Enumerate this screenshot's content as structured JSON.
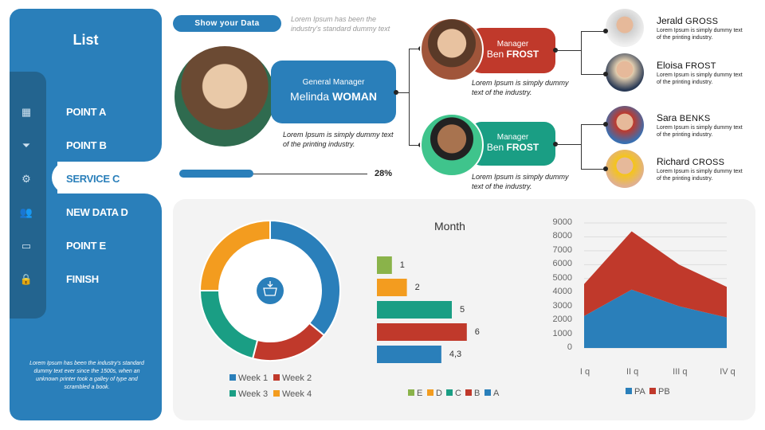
{
  "sidebar": {
    "title": "List",
    "items": [
      {
        "label": "POINT A",
        "icon": "calendar-icon"
      },
      {
        "label": "POINT B",
        "icon": "funnel-plus-icon"
      },
      {
        "label": "SERVICE C",
        "icon": "gear-icon",
        "active": true
      },
      {
        "label": "NEW DATA D",
        "icon": "users-icon"
      },
      {
        "label": "POINT E",
        "icon": "briefcase-icon"
      },
      {
        "label": "FINISH",
        "icon": "lock-icon"
      }
    ],
    "note": "Lorem Ipsum has been the industry's standard dummy text ever since the 1500s, when an unknown printer took a galley of type and scrambled  a book."
  },
  "header": {
    "button": "Show your  Data",
    "text": "Lorem Ipsum has been the industry's standard dummy text"
  },
  "general_manager": {
    "role": "General Manager",
    "first": "Melinda",
    "last": "WOMAN",
    "caption": "Lorem Ipsum is simply dummy text of the printing industry.",
    "progress_pct": 28,
    "progress_label": "28%"
  },
  "managers": [
    {
      "role": "Manager",
      "first": "Ben",
      "last": "FROST",
      "caption": "Lorem Ipsum is simply dummy text of the industry.",
      "color": "#c0392b",
      "reports": [
        {
          "first": "Jerald",
          "last": "GROSS",
          "text": "Lorem Ipsum  is simply dummy text of the printing industry."
        },
        {
          "first": "Eloisa",
          "last": "FROST",
          "text": "Lorem Ipsum  is simply dummy text of the printing industry."
        }
      ]
    },
    {
      "role": "Manager",
      "first": "Ben",
      "last": "FROST",
      "caption": "Lorem Ipsum is simply dummy text of the industry.",
      "color": "#1a9e84",
      "reports": [
        {
          "first": "Sara",
          "last": "BENKS",
          "text": "Lorem Ipsum  is simply dummy text of the printing industry."
        },
        {
          "first": "Richard",
          "last": "CROSS",
          "text": "Lorem Ipsum  is simply dummy text of the printing industry."
        }
      ]
    }
  ],
  "colors": {
    "blue": "#2a7fba",
    "red": "#c0392b",
    "teal": "#1a9e84",
    "orange": "#f39c1f",
    "green": "#8ab34a"
  },
  "chart_data": [
    {
      "type": "pie",
      "variant": "donut",
      "center_icon": "basket-download-icon",
      "categories": [
        "Week 1",
        "Week 2",
        "Week 3",
        "Week 4"
      ],
      "values": [
        36,
        18,
        21,
        25
      ],
      "colors": [
        "#2a7fba",
        "#c0392b",
        "#1a9e84",
        "#f39c1f"
      ],
      "legend": "bottom"
    },
    {
      "type": "bar",
      "orientation": "horizontal",
      "title": "Month",
      "categories": [
        "E",
        "D",
        "C",
        "B",
        "A"
      ],
      "values": [
        1,
        2,
        5,
        6,
        4.3
      ],
      "labels": [
        "1",
        "2",
        "5",
        "6",
        "4,3"
      ],
      "colors": [
        "#8ab34a",
        "#f39c1f",
        "#1a9e84",
        "#c0392b",
        "#2a7fba"
      ],
      "legend": "bottom"
    },
    {
      "type": "area",
      "stacked": true,
      "categories": [
        "I q",
        "II q",
        "III q",
        "IV q"
      ],
      "ylim": [
        0,
        9000
      ],
      "yticks": [
        "0",
        "1000",
        "2000",
        "3000",
        "4000",
        "5000",
        "6000",
        "7000",
        "8000",
        "9000"
      ],
      "grid": true,
      "series": [
        {
          "name": "PA",
          "values": [
            2300,
            4200,
            3000,
            2200
          ],
          "color": "#2a7fba"
        },
        {
          "name": "PB",
          "values": [
            2300,
            4200,
            3000,
            2200
          ],
          "color": "#c0392b"
        }
      ],
      "legend": "bottom"
    }
  ]
}
